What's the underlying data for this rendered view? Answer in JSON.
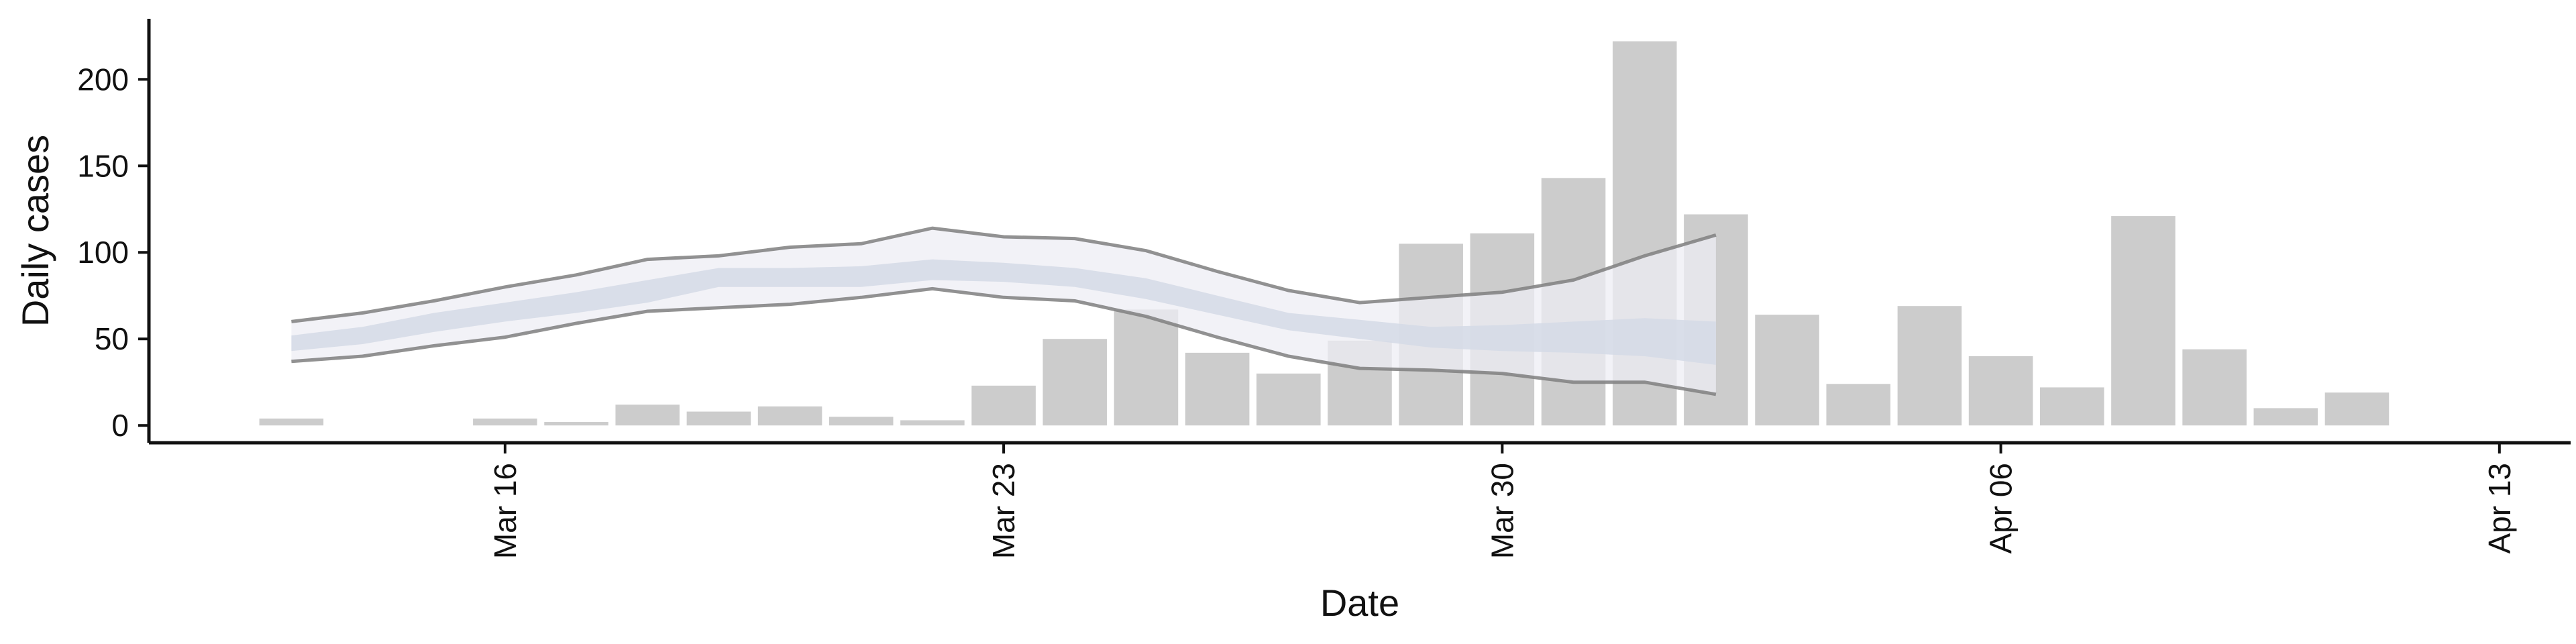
{
  "chart_data": {
    "type": "bar",
    "xlabel": "Date",
    "ylabel": "Daily cases",
    "xlim": [
      "2020-03-11",
      "2020-04-14"
    ],
    "ylim": [
      -10,
      235
    ],
    "x_ticks": [
      {
        "date": "2020-03-16",
        "label": "Mar 16"
      },
      {
        "date": "2020-03-23",
        "label": "Mar 23"
      },
      {
        "date": "2020-03-30",
        "label": "Mar 30"
      },
      {
        "date": "2020-04-06",
        "label": "Apr 06"
      },
      {
        "date": "2020-04-13",
        "label": "Apr 13"
      }
    ],
    "y_ticks": [
      0,
      50,
      100,
      150,
      200
    ],
    "grid": false,
    "colors": {
      "bars": "#cccccc",
      "outer_band": "#edeef4",
      "inner_band": "#d5dbe6",
      "bound_lines": "#7f7f7f",
      "axis": "#111111"
    },
    "bars": [
      {
        "date": "2020-03-13",
        "value": 4
      },
      {
        "date": "2020-03-14",
        "value": 0
      },
      {
        "date": "2020-03-15",
        "value": 0
      },
      {
        "date": "2020-03-16",
        "value": 4
      },
      {
        "date": "2020-03-17",
        "value": 2
      },
      {
        "date": "2020-03-18",
        "value": 12
      },
      {
        "date": "2020-03-19",
        "value": 8
      },
      {
        "date": "2020-03-20",
        "value": 11
      },
      {
        "date": "2020-03-21",
        "value": 5
      },
      {
        "date": "2020-03-22",
        "value": 3
      },
      {
        "date": "2020-03-23",
        "value": 23
      },
      {
        "date": "2020-03-24",
        "value": 50
      },
      {
        "date": "2020-03-25",
        "value": 67
      },
      {
        "date": "2020-03-26",
        "value": 42
      },
      {
        "date": "2020-03-27",
        "value": 30
      },
      {
        "date": "2020-03-28",
        "value": 49
      },
      {
        "date": "2020-03-29",
        "value": 105
      },
      {
        "date": "2020-03-30",
        "value": 111
      },
      {
        "date": "2020-03-31",
        "value": 143
      },
      {
        "date": "2020-04-01",
        "value": 222
      },
      {
        "date": "2020-04-02",
        "value": 122
      },
      {
        "date": "2020-04-03",
        "value": 64
      },
      {
        "date": "2020-04-04",
        "value": 24
      },
      {
        "date": "2020-04-05",
        "value": 69
      },
      {
        "date": "2020-04-06",
        "value": 40
      },
      {
        "date": "2020-04-07",
        "value": 22
      },
      {
        "date": "2020-04-08",
        "value": 121
      },
      {
        "date": "2020-04-09",
        "value": 44
      },
      {
        "date": "2020-04-10",
        "value": 10
      },
      {
        "date": "2020-04-11",
        "value": 19
      }
    ],
    "estimate_band": {
      "dates": [
        "2020-03-13",
        "2020-03-14",
        "2020-03-15",
        "2020-03-16",
        "2020-03-17",
        "2020-03-18",
        "2020-03-19",
        "2020-03-20",
        "2020-03-21",
        "2020-03-22",
        "2020-03-23",
        "2020-03-24",
        "2020-03-25",
        "2020-03-26",
        "2020-03-27",
        "2020-03-28",
        "2020-03-29",
        "2020-03-30",
        "2020-03-31",
        "2020-04-01",
        "2020-04-02"
      ],
      "upper": [
        60,
        65,
        72,
        80,
        87,
        96,
        98,
        103,
        105,
        114,
        109,
        108,
        101,
        89,
        78,
        71,
        74,
        77,
        84,
        98,
        110
      ],
      "lower": [
        37,
        40,
        46,
        51,
        59,
        66,
        68,
        70,
        74,
        79,
        74,
        72,
        63,
        51,
        40,
        33,
        32,
        30,
        25,
        25,
        18
      ],
      "inner_upper": [
        52,
        57,
        65,
        71,
        77,
        84,
        91,
        91,
        92,
        96,
        94,
        91,
        85,
        75,
        65,
        61,
        57,
        58,
        60,
        62,
        60
      ],
      "inner_lower": [
        43,
        47,
        54,
        60,
        65,
        71,
        80,
        80,
        80,
        84,
        83,
        80,
        73,
        64,
        55,
        50,
        45,
        43,
        42,
        40,
        35
      ]
    }
  }
}
